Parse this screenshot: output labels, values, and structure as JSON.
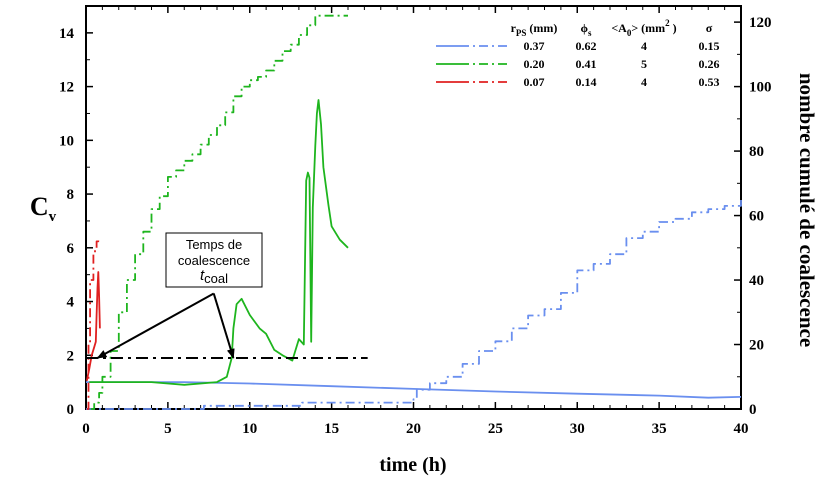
{
  "chart_data": {
    "type": "line",
    "xlabel": "time (h)",
    "ylabel_left": "C",
    "ylabel_left_sub": "v",
    "ylabel_right": "nombre cumulé de coalescence",
    "xlim": [
      0,
      40
    ],
    "ylim_left": [
      0,
      15
    ],
    "ylim_right": [
      0,
      125
    ],
    "x_ticks": [
      0,
      5,
      10,
      15,
      20,
      25,
      30,
      35,
      40
    ],
    "y_left_ticks": [
      0,
      2,
      4,
      6,
      8,
      10,
      12,
      14
    ],
    "y_right_ticks": [
      0,
      20,
      40,
      60,
      80,
      100,
      120
    ],
    "grid": false,
    "legend": {
      "placement": "top-right",
      "headers": [
        "r_PS (mm)",
        "ϕ_s",
        "<A_0> (mm^2)",
        "σ"
      ],
      "header_labels": {
        "r_main": "r",
        "r_sub": "PS",
        "r_unit": " (mm)",
        "phi_main": "ϕ",
        "phi_sub": "s",
        "a_main": "<A",
        "a_sub": "0",
        "a_unit": "> (mm",
        "a_sup": "2",
        "a_close": " )",
        "sigma": "σ"
      },
      "rows": [
        {
          "color": "#6a8fef",
          "values": [
            "0.37",
            "0.62",
            "4",
            "0.15"
          ]
        },
        {
          "color": "#1eb51e",
          "values": [
            "0.20",
            "0.41",
            "5",
            "0.26"
          ]
        },
        {
          "color": "#e02020",
          "values": [
            "0.07",
            "0.14",
            "4",
            "0.53"
          ]
        }
      ]
    },
    "series": [
      {
        "color": "#6a8fef",
        "style": "solid",
        "axis": "left",
        "x": [
          0,
          3,
          6,
          10,
          15,
          20,
          25,
          30,
          35,
          38,
          40
        ],
        "y": [
          1.0,
          1.0,
          1.0,
          0.95,
          0.85,
          0.75,
          0.65,
          0.57,
          0.5,
          0.42,
          0.45
        ]
      },
      {
        "color": "#6a8fef",
        "style": "dashdot",
        "axis": "right",
        "x": [
          0,
          7,
          7.2,
          13,
          13.2,
          20,
          20.2,
          21,
          22,
          23,
          24,
          25,
          26,
          27,
          28,
          29,
          30,
          31,
          32,
          33,
          34,
          35,
          36,
          37,
          38,
          39,
          40
        ],
        "y": [
          0,
          0,
          1,
          1,
          2,
          3,
          6,
          8,
          10,
          14,
          18,
          21,
          25,
          29,
          31,
          36,
          43,
          45,
          48,
          53,
          55,
          58,
          59,
          61,
          62,
          63,
          65
        ]
      },
      {
        "color": "#1eb51e",
        "style": "solid",
        "axis": "left",
        "x": [
          0.2,
          4,
          6,
          8,
          8.6,
          8.9,
          9.0,
          9.2,
          9.5,
          10.0,
          10.6,
          11.0,
          11.5,
          12.0,
          12.6,
          13.0,
          13.3,
          13.45,
          13.55,
          13.65,
          13.75,
          13.8,
          13.85,
          14.0,
          14.1,
          14.2,
          14.35,
          14.5,
          14.8,
          15.0,
          15.5,
          16.0
        ],
        "y": [
          1.0,
          1.0,
          0.9,
          1.0,
          1.2,
          1.9,
          3.0,
          3.9,
          4.1,
          3.5,
          3.0,
          2.8,
          2.2,
          2.0,
          1.8,
          2.6,
          2.4,
          8.5,
          8.8,
          8.6,
          2.5,
          5.0,
          7.5,
          9.8,
          11.0,
          11.5,
          10.6,
          9.0,
          7.6,
          6.8,
          6.3,
          6.0
        ]
      },
      {
        "color": "#1eb51e",
        "style": "dashdot",
        "axis": "right",
        "x": [
          0.3,
          0.5,
          0.8,
          1.0,
          1.5,
          2,
          2.5,
          3,
          3.5,
          4,
          4.5,
          5,
          5.5,
          6,
          6.5,
          7,
          7.5,
          8,
          8.5,
          9,
          9.5,
          10,
          10.5,
          11,
          11.5,
          12,
          12.5,
          13,
          13.5,
          14,
          15,
          16
        ],
        "y": [
          0,
          2,
          5,
          10,
          18,
          30,
          40,
          48,
          55,
          62,
          66,
          72,
          74,
          77,
          79,
          82,
          85,
          88,
          92,
          97,
          100,
          102,
          103,
          105,
          108,
          111,
          113,
          116,
          119,
          122,
          122,
          122
        ]
      },
      {
        "color": "#e02020",
        "style": "solid",
        "axis": "left",
        "x": [
          0.05,
          0.2,
          0.35,
          0.5,
          0.6,
          0.65,
          0.7,
          0.75,
          0.8,
          0.85
        ],
        "y": [
          1.05,
          1.5,
          2.0,
          2.3,
          2.5,
          3.5,
          4.5,
          5.1,
          4.2,
          3.0
        ]
      },
      {
        "color": "#e02020",
        "style": "dashdot",
        "axis": "right",
        "x": [
          0.05,
          0.15,
          0.25,
          0.35,
          0.45,
          0.55,
          0.65,
          0.75
        ],
        "y": [
          0,
          20,
          40,
          40,
          48,
          50,
          52,
          53
        ]
      }
    ],
    "annotation": {
      "box_lines": [
        "Temps de",
        "coalescence"
      ],
      "symbol_main": "t",
      "symbol_sub": "coal",
      "threshold_y": 1.9,
      "threshold_x": [
        0,
        17.2
      ],
      "arrow_source_x": 7.8,
      "arrow_source_y": 4.3,
      "arrow_targets": [
        {
          "x": 0.7,
          "y": 1.9
        },
        {
          "x": 9.0,
          "y": 1.9
        }
      ]
    }
  }
}
